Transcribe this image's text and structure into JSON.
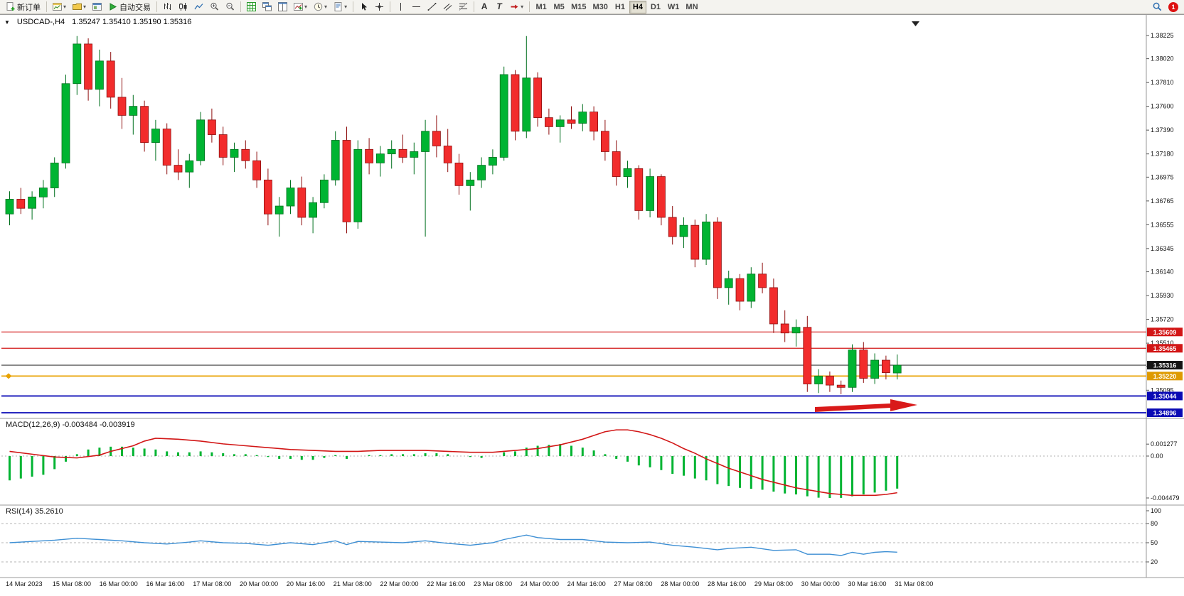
{
  "toolbar": {
    "new_order": "新订单",
    "autotrading": "自动交易",
    "timeframes": [
      "M1",
      "M5",
      "M15",
      "M30",
      "H1",
      "H4",
      "D1",
      "W1",
      "MN"
    ],
    "active_timeframe": "H4",
    "notification_count": "1"
  },
  "chart": {
    "title": "USDCAD-,H4",
    "ohlc": "1.35247 1.35410 1.35190 1.35316",
    "open": "1.35247",
    "high": "1.35410",
    "low": "1.35190",
    "close": "1.35316"
  },
  "chart_data": {
    "type": "candlestick",
    "symbol": "USDCAD",
    "period": "H4",
    "y_ticks": [
      "1.38225",
      "1.38020",
      "1.37810",
      "1.37600",
      "1.37390",
      "1.37180",
      "1.36975",
      "1.36765",
      "1.36555",
      "1.36345",
      "1.36140",
      "1.35930",
      "1.35720",
      "1.35510",
      "1.35305",
      "1.35095"
    ],
    "x_labels": [
      "14 Mar 2023",
      "15 Mar 08:00",
      "16 Mar 00:00",
      "16 Mar 16:00",
      "17 Mar 08:00",
      "20 Mar 00:00",
      "20 Mar 16:00",
      "21 Mar 08:00",
      "22 Mar 00:00",
      "22 Mar 16:00",
      "23 Mar 08:00",
      "24 Mar 00:00",
      "24 Mar 16:00",
      "27 Mar 08:00",
      "28 Mar 00:00",
      "28 Mar 16:00",
      "29 Mar 08:00",
      "30 Mar 00:00",
      "30 Mar 16:00",
      "31 Mar 08:00"
    ],
    "candles": [
      [
        1.3665,
        1.3685,
        1.3655,
        1.3678
      ],
      [
        1.3678,
        1.3688,
        1.3665,
        1.367
      ],
      [
        1.367,
        1.3685,
        1.366,
        1.368
      ],
      [
        1.368,
        1.3695,
        1.367,
        1.3688
      ],
      [
        1.3688,
        1.3715,
        1.368,
        1.371
      ],
      [
        1.371,
        1.3788,
        1.3705,
        1.378
      ],
      [
        1.378,
        1.3822,
        1.377,
        1.3815
      ],
      [
        1.3815,
        1.382,
        1.3765,
        1.3775
      ],
      [
        1.3775,
        1.381,
        1.376,
        1.38
      ],
      [
        1.38,
        1.3808,
        1.3758,
        1.3768
      ],
      [
        1.3768,
        1.3785,
        1.374,
        1.3752
      ],
      [
        1.3752,
        1.377,
        1.3735,
        1.376
      ],
      [
        1.376,
        1.3765,
        1.372,
        1.3728
      ],
      [
        1.3728,
        1.3748,
        1.3712,
        1.374
      ],
      [
        1.374,
        1.3745,
        1.37,
        1.3708
      ],
      [
        1.3708,
        1.3722,
        1.3695,
        1.3702
      ],
      [
        1.3702,
        1.3718,
        1.3688,
        1.3712
      ],
      [
        1.3712,
        1.3755,
        1.3708,
        1.3748
      ],
      [
        1.3748,
        1.3758,
        1.3728,
        1.3735
      ],
      [
        1.3735,
        1.3742,
        1.3708,
        1.3715
      ],
      [
        1.3715,
        1.3728,
        1.3702,
        1.3722
      ],
      [
        1.3722,
        1.373,
        1.3705,
        1.3712
      ],
      [
        1.3712,
        1.372,
        1.3688,
        1.3695
      ],
      [
        1.3695,
        1.3705,
        1.3655,
        1.3665
      ],
      [
        1.3665,
        1.368,
        1.3645,
        1.3672
      ],
      [
        1.3672,
        1.3695,
        1.3665,
        1.3688
      ],
      [
        1.3688,
        1.3698,
        1.3655,
        1.3662
      ],
      [
        1.3662,
        1.368,
        1.3648,
        1.3675
      ],
      [
        1.3675,
        1.37,
        1.367,
        1.3695
      ],
      [
        1.3695,
        1.3738,
        1.369,
        1.373
      ],
      [
        1.373,
        1.3742,
        1.3648,
        1.3658
      ],
      [
        1.3658,
        1.373,
        1.3652,
        1.3722
      ],
      [
        1.3722,
        1.3732,
        1.37,
        1.371
      ],
      [
        1.371,
        1.3725,
        1.3698,
        1.3718
      ],
      [
        1.3718,
        1.373,
        1.3705,
        1.3722
      ],
      [
        1.3722,
        1.3735,
        1.371,
        1.3715
      ],
      [
        1.3715,
        1.3728,
        1.37,
        1.372
      ],
      [
        1.372,
        1.3748,
        1.3645,
        1.3738
      ],
      [
        1.3738,
        1.3752,
        1.3715,
        1.3725
      ],
      [
        1.3725,
        1.374,
        1.3702,
        1.371
      ],
      [
        1.371,
        1.3718,
        1.3682,
        1.369
      ],
      [
        1.369,
        1.3702,
        1.3668,
        1.3695
      ],
      [
        1.3695,
        1.3715,
        1.3688,
        1.3708
      ],
      [
        1.3708,
        1.3722,
        1.37,
        1.3715
      ],
      [
        1.3715,
        1.3795,
        1.3712,
        1.3788
      ],
      [
        1.3788,
        1.3792,
        1.373,
        1.3738
      ],
      [
        1.3738,
        1.3822,
        1.3732,
        1.3785
      ],
      [
        1.3785,
        1.379,
        1.3742,
        1.375
      ],
      [
        1.375,
        1.3758,
        1.3735,
        1.3742
      ],
      [
        1.3742,
        1.3752,
        1.3728,
        1.3748
      ],
      [
        1.3748,
        1.376,
        1.374,
        1.3745
      ],
      [
        1.3745,
        1.3762,
        1.3738,
        1.3755
      ],
      [
        1.3755,
        1.376,
        1.373,
        1.3738
      ],
      [
        1.3738,
        1.3748,
        1.3712,
        1.372
      ],
      [
        1.372,
        1.373,
        1.369,
        1.3698
      ],
      [
        1.3698,
        1.3712,
        1.3688,
        1.3705
      ],
      [
        1.3705,
        1.3708,
        1.366,
        1.3668
      ],
      [
        1.3668,
        1.3705,
        1.3662,
        1.3698
      ],
      [
        1.3698,
        1.37,
        1.3655,
        1.3662
      ],
      [
        1.3662,
        1.3672,
        1.3638,
        1.3645
      ],
      [
        1.3645,
        1.3662,
        1.3635,
        1.3655
      ],
      [
        1.3655,
        1.366,
        1.3618,
        1.3625
      ],
      [
        1.3625,
        1.3665,
        1.362,
        1.3658
      ],
      [
        1.3658,
        1.3662,
        1.359,
        1.36
      ],
      [
        1.36,
        1.3615,
        1.3585,
        1.3608
      ],
      [
        1.3608,
        1.3612,
        1.358,
        1.3588
      ],
      [
        1.3588,
        1.3618,
        1.3582,
        1.3612
      ],
      [
        1.3612,
        1.3622,
        1.3595,
        1.36
      ],
      [
        1.36,
        1.3608,
        1.356,
        1.3568
      ],
      [
        1.3568,
        1.358,
        1.3552,
        1.356
      ],
      [
        1.356,
        1.3572,
        1.3548,
        1.3565
      ],
      [
        1.3565,
        1.3575,
        1.3508,
        1.3515
      ],
      [
        1.3515,
        1.3528,
        1.3507,
        1.3522
      ],
      [
        1.3522,
        1.3526,
        1.3508,
        1.3514
      ],
      [
        1.3514,
        1.3518,
        1.3506,
        1.3512
      ],
      [
        1.3512,
        1.355,
        1.3508,
        1.3545
      ],
      [
        1.3545,
        1.3552,
        1.3516,
        1.352
      ],
      [
        1.352,
        1.3542,
        1.3515,
        1.3536
      ],
      [
        1.3536,
        1.354,
        1.3519,
        1.3525
      ],
      [
        1.35247,
        1.3541,
        1.3519,
        1.35316
      ]
    ],
    "price_lines": [
      {
        "price": 1.35609,
        "label": "1.35609",
        "line": "#D21616",
        "badge": "#D21616",
        "width": 1.2,
        "name": "resistance-line-1"
      },
      {
        "price": 1.35465,
        "label": "1.35465",
        "line": "#D21616",
        "badge": "#D21616",
        "width": 1.2,
        "name": "resistance-line-2"
      },
      {
        "price": 1.35316,
        "label": "1.35316",
        "line": "#3C3C3C",
        "badge": "#141414",
        "width": 1.2,
        "name": "current-price-line"
      },
      {
        "price": 1.3522,
        "label": "1.35220",
        "line": "#E8A200",
        "badge": "#DE9A00",
        "width": 1.8,
        "name": "orange-level-line"
      },
      {
        "price": 1.35044,
        "label": "1.35044",
        "line": "#1010B8",
        "badge": "#0A0AB4",
        "width": 1.8,
        "name": "support-line-1"
      },
      {
        "price": 1.34896,
        "label": "1.34896",
        "line": "#1010B8",
        "badge": "#0A0AB4",
        "width": 1.8,
        "name": "support-line-2"
      }
    ],
    "arrow": {
      "color": "#D91A1A",
      "direction": "right"
    },
    "colors": {
      "bull": "#00B432",
      "bull_stroke": "#00701E",
      "bear": "#F22C2C",
      "bear_stroke": "#8E0E0E",
      "macd_hist": "#00B432",
      "macd_signal": "#D21616",
      "rsi_line": "#3D8FD4"
    },
    "macd": {
      "label": "MACD(12,26,9) -0.003484 -0.003919",
      "value": -0.003484,
      "signal_value": -0.003919,
      "ticks": [
        "0.001277",
        "0.00",
        "-0.004479"
      ],
      "tick_values": [
        0.001277,
        0,
        -0.004479
      ],
      "hist": [
        -0.0026,
        -0.0024,
        -0.0022,
        -0.002,
        -0.0014,
        -0.0006,
        0.0002,
        0.0007,
        0.0009,
        0.001,
        0.001,
        0.0009,
        0.0008,
        0.0007,
        0.0005,
        0.0004,
        0.0004,
        0.0005,
        0.0004,
        0.0003,
        0.0002,
        0.0002,
        0.0001,
        -0.0001,
        -0.0003,
        -0.0003,
        -0.0004,
        -0.0004,
        -0.0002,
        0.0001,
        -0.0003,
        0,
        0.0001,
        0.0001,
        0.0002,
        0.0002,
        0.0002,
        0.0003,
        0.0003,
        0.0002,
        0,
        -0.0001,
        -0.0002,
        0,
        0.0004,
        0.0005,
        0.0009,
        0.0011,
        0.0012,
        0.00128,
        0.0011,
        0.0009,
        0.0006,
        0.0002,
        -0.0003,
        -0.0006,
        -0.001,
        -0.0012,
        -0.0015,
        -0.0019,
        -0.0021,
        -0.0024,
        -0.0026,
        -0.003,
        -0.0032,
        -0.0034,
        -0.0035,
        -0.0036,
        -0.0038,
        -0.004,
        -0.0041,
        -0.0043,
        -0.00445,
        -0.00448,
        -0.00447,
        -0.0043,
        -0.0041,
        -0.0039,
        -0.0037,
        -0.00348
      ],
      "signal": [
        [
          0,
          0.0005
        ],
        [
          2,
          0.0002
        ],
        [
          4,
          -0.0001
        ],
        [
          6,
          -0.0002
        ],
        [
          8,
          0.0001
        ],
        [
          9,
          0.0005
        ],
        [
          11,
          0.0011
        ],
        [
          12,
          0.0016
        ],
        [
          13,
          0.0019
        ],
        [
          15,
          0.0018
        ],
        [
          17,
          0.0016
        ],
        [
          19,
          0.0013
        ],
        [
          21,
          0.0011
        ],
        [
          23,
          0.0009
        ],
        [
          25,
          0.0007
        ],
        [
          27,
          0.0006
        ],
        [
          29,
          0.0005
        ],
        [
          31,
          0.0005
        ],
        [
          33,
          0.0006
        ],
        [
          35,
          0.0006
        ],
        [
          37,
          0.0006
        ],
        [
          39,
          0.0005
        ],
        [
          41,
          0.0004
        ],
        [
          43,
          0.0004
        ],
        [
          45,
          0.0006
        ],
        [
          47,
          0.0008
        ],
        [
          49,
          0.0012
        ],
        [
          51,
          0.0018
        ],
        [
          52,
          0.0022
        ],
        [
          53,
          0.0026
        ],
        [
          54,
          0.0028
        ],
        [
          55,
          0.0028
        ],
        [
          56,
          0.0026
        ],
        [
          57,
          0.0023
        ],
        [
          58,
          0.0019
        ],
        [
          59,
          0.0014
        ],
        [
          60,
          0.0008
        ],
        [
          61,
          0.0003
        ],
        [
          62,
          -0.0003
        ],
        [
          63,
          -0.0008
        ],
        [
          64,
          -0.0013
        ],
        [
          65,
          -0.0017
        ],
        [
          66,
          -0.0021
        ],
        [
          67,
          -0.0025
        ],
        [
          68,
          -0.0028
        ],
        [
          69,
          -0.0031
        ],
        [
          70,
          -0.0034
        ],
        [
          71,
          -0.0036
        ],
        [
          72,
          -0.0038
        ],
        [
          73,
          -0.004
        ],
        [
          74,
          -0.0041
        ],
        [
          75,
          -0.0042
        ],
        [
          76,
          -0.0042
        ],
        [
          77,
          -0.0042
        ],
        [
          78,
          -0.0041
        ],
        [
          79,
          -0.00392
        ]
      ]
    },
    "rsi": {
      "label": "RSI(14) 35.2610",
      "value": 35.261,
      "ticks": [
        "100",
        "80",
        "50",
        "20"
      ],
      "levels": [
        80,
        50,
        20
      ],
      "points": [
        [
          0,
          50
        ],
        [
          2,
          52
        ],
        [
          4,
          54
        ],
        [
          6,
          57
        ],
        [
          8,
          55
        ],
        [
          10,
          53
        ],
        [
          12,
          50
        ],
        [
          14,
          48
        ],
        [
          16,
          51
        ],
        [
          17,
          53
        ],
        [
          19,
          50
        ],
        [
          21,
          49
        ],
        [
          23,
          46
        ],
        [
          25,
          50
        ],
        [
          27,
          47
        ],
        [
          29,
          53
        ],
        [
          30,
          47
        ],
        [
          31,
          52
        ],
        [
          33,
          51
        ],
        [
          35,
          50
        ],
        [
          37,
          53
        ],
        [
          39,
          49
        ],
        [
          41,
          46
        ],
        [
          43,
          50
        ],
        [
          44,
          55
        ],
        [
          46,
          62
        ],
        [
          47,
          58
        ],
        [
          49,
          55
        ],
        [
          51,
          55
        ],
        [
          53,
          51
        ],
        [
          55,
          50
        ],
        [
          57,
          51
        ],
        [
          59,
          46
        ],
        [
          61,
          43
        ],
        [
          63,
          39
        ],
        [
          64,
          41
        ],
        [
          66,
          43
        ],
        [
          68,
          38
        ],
        [
          70,
          39
        ],
        [
          71,
          32
        ],
        [
          73,
          32
        ],
        [
          74,
          30
        ],
        [
          75,
          35
        ],
        [
          76,
          32
        ],
        [
          77,
          35
        ],
        [
          78,
          36
        ],
        [
          79,
          35.26
        ]
      ]
    }
  }
}
